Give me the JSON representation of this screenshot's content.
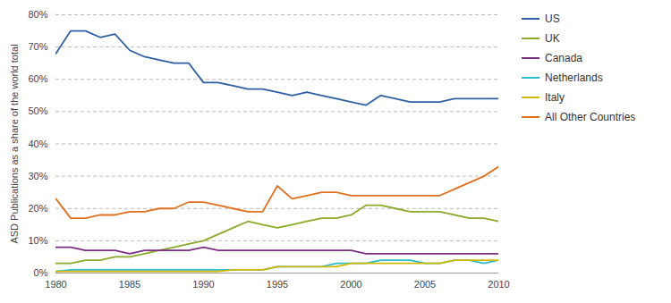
{
  "chart_data": {
    "type": "line",
    "ylabel": "ASD Publications as a share of the world total",
    "x": [
      1980,
      1981,
      1982,
      1983,
      1984,
      1985,
      1986,
      1987,
      1988,
      1989,
      1990,
      1991,
      1992,
      1993,
      1994,
      1995,
      1996,
      1997,
      1998,
      1999,
      2000,
      2001,
      2002,
      2003,
      2004,
      2005,
      2006,
      2007,
      2008,
      2009,
      2010
    ],
    "xlim": [
      1980,
      2010
    ],
    "xticks": [
      1980,
      1985,
      1990,
      1995,
      2000,
      2005,
      2010
    ],
    "ylim": [
      0,
      80
    ],
    "yticks": [
      {
        "value": 0,
        "label": "0%"
      },
      {
        "value": 10,
        "label": "10%"
      },
      {
        "value": 20,
        "label": "20%"
      },
      {
        "value": 30,
        "label": "30%"
      },
      {
        "value": 40,
        "label": "40%"
      },
      {
        "value": 50,
        "label": "50%"
      },
      {
        "value": 60,
        "label": "60%"
      },
      {
        "value": 70,
        "label": "70%"
      },
      {
        "value": 80,
        "label": "80%"
      }
    ],
    "grid": true,
    "legend": "right",
    "series": [
      {
        "name": "US",
        "color": "#2e5fa3",
        "values": [
          68,
          75,
          75,
          73,
          74,
          69,
          67,
          66,
          65,
          65,
          59,
          59,
          58,
          57,
          57,
          56,
          55,
          56,
          55,
          54,
          53,
          52,
          55,
          54,
          53,
          53,
          53,
          54,
          54,
          54,
          54
        ]
      },
      {
        "name": "UK",
        "color": "#8aaa2a",
        "values": [
          3,
          3,
          4,
          4,
          5,
          5,
          6,
          7,
          8,
          9,
          10,
          12,
          14,
          16,
          15,
          14,
          15,
          16,
          17,
          17,
          18,
          21,
          21,
          20,
          19,
          19,
          19,
          18,
          17,
          17,
          16
        ]
      },
      {
        "name": "Canada",
        "color": "#7b2f82",
        "values": [
          8,
          8,
          7,
          7,
          7,
          6,
          7,
          7,
          7,
          7,
          8,
          7,
          7,
          7,
          7,
          7,
          7,
          7,
          7,
          7,
          7,
          6,
          6,
          6,
          6,
          6,
          6,
          6,
          6,
          6,
          6
        ]
      },
      {
        "name": "Netherlands",
        "color": "#2bbccc",
        "values": [
          0.5,
          1,
          1,
          1,
          1,
          1,
          1,
          1,
          1,
          1,
          1,
          1,
          1,
          1,
          1,
          2,
          2,
          2,
          2,
          3,
          3,
          3,
          4,
          4,
          4,
          3,
          3,
          4,
          4,
          3,
          4
        ]
      },
      {
        "name": "Italy",
        "color": "#d4b800",
        "values": [
          0.5,
          0.5,
          0.5,
          0.5,
          0.5,
          0.5,
          0.5,
          0.5,
          0.5,
          0.5,
          0.5,
          0.5,
          1,
          1,
          1,
          2,
          2,
          2,
          2,
          2,
          3,
          3,
          3,
          3,
          3,
          3,
          3,
          4,
          4,
          4,
          4
        ]
      },
      {
        "name": "All Other Countries",
        "color": "#e07020",
        "values": [
          23,
          17,
          17,
          18,
          18,
          19,
          19,
          20,
          20,
          22,
          22,
          21,
          20,
          19,
          19,
          27,
          23,
          24,
          25,
          25,
          24,
          24,
          24,
          24,
          24,
          24,
          24,
          26,
          28,
          30,
          33
        ]
      }
    ]
  }
}
